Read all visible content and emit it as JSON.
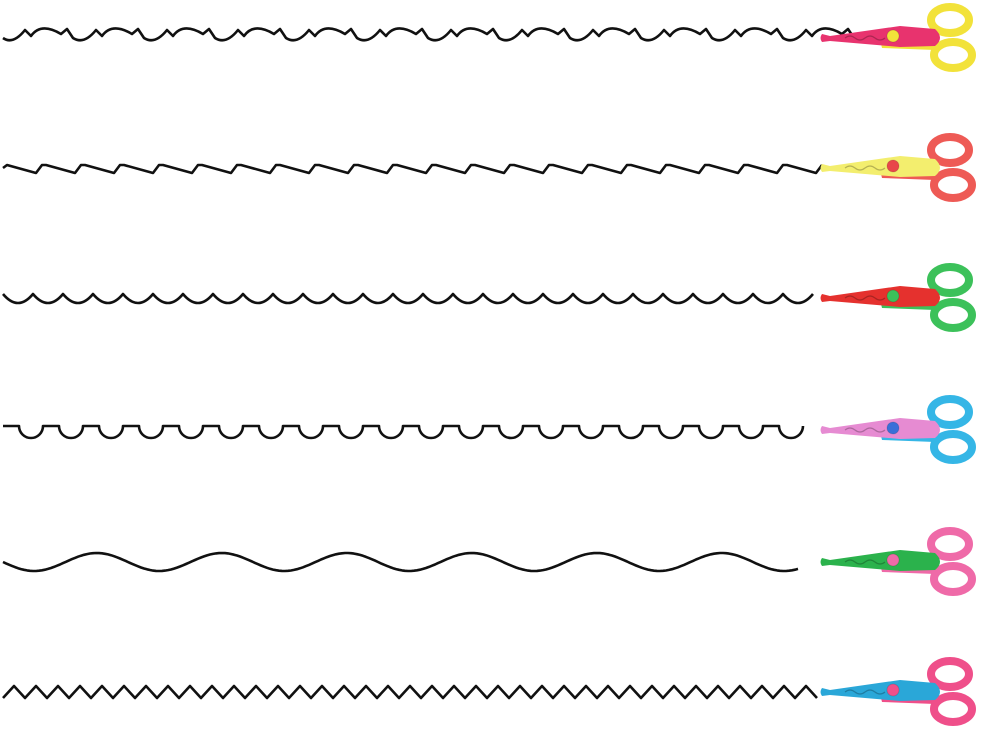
{
  "rows": [
    {
      "pattern": "deckle",
      "blade_color": "#e8336e",
      "handle_color": "#f2e23a",
      "pivot_color": "#f2e23a"
    },
    {
      "pattern": "sawtooth",
      "blade_color": "#f3ee6e",
      "handle_color": "#ee5a55",
      "pivot_color": "#e8474a"
    },
    {
      "pattern": "scallop",
      "blade_color": "#e5312e",
      "handle_color": "#3cc15a",
      "pivot_color": "#3cc15a"
    },
    {
      "pattern": "square-scallop",
      "blade_color": "#e68bd2",
      "handle_color": "#35b6e6",
      "pivot_color": "#3a6fd8"
    },
    {
      "pattern": "wave",
      "blade_color": "#2bb24c",
      "handle_color": "#ef6aa8",
      "pivot_color": "#ef6aa8"
    },
    {
      "pattern": "zigzag",
      "blade_color": "#2aa7d8",
      "handle_color": "#ef4f8a",
      "pivot_color": "#ef4f8a"
    }
  ]
}
